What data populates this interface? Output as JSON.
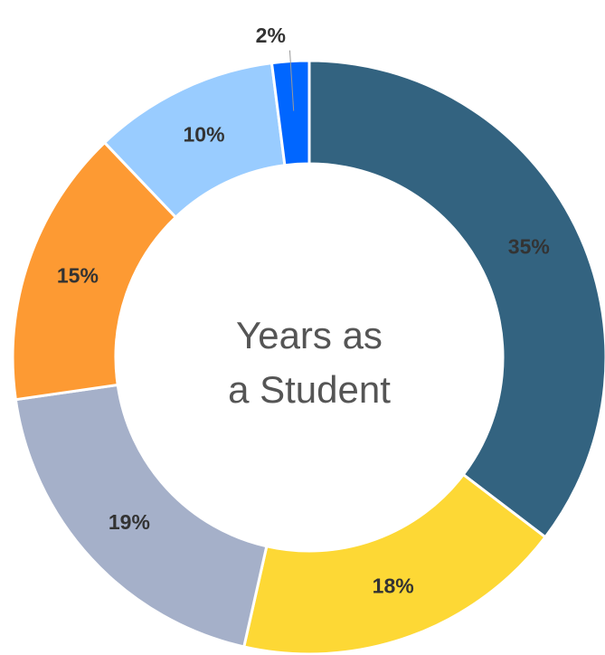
{
  "chart_data": {
    "type": "donut",
    "center_text": [
      "Years as",
      "a Student"
    ],
    "values": [
      35,
      18,
      19,
      15,
      10,
      2
    ],
    "value_labels": [
      "35%",
      "18%",
      "19%",
      "15%",
      "10%",
      "2%"
    ],
    "colors": [
      "#336380",
      "#fdd835",
      "#a5b0c9",
      "#fd9a33",
      "#99ccff",
      "#0066ff"
    ]
  }
}
